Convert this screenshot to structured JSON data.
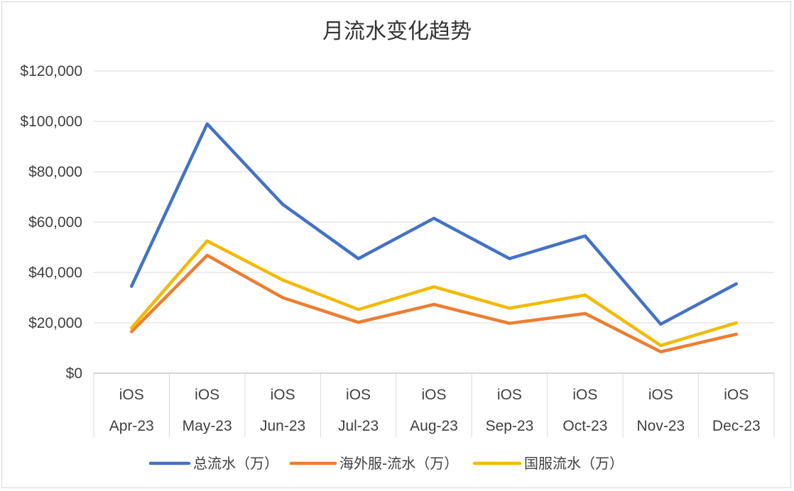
{
  "chart_data": {
    "type": "line",
    "title": "月流水变化趋势",
    "categories": [
      {
        "group": "iOS",
        "month": "Apr-23"
      },
      {
        "group": "iOS",
        "month": "May-23"
      },
      {
        "group": "iOS",
        "month": "Jun-23"
      },
      {
        "group": "iOS",
        "month": "Jul-23"
      },
      {
        "group": "iOS",
        "month": "Aug-23"
      },
      {
        "group": "iOS",
        "month": "Sep-23"
      },
      {
        "group": "iOS",
        "month": "Oct-23"
      },
      {
        "group": "iOS",
        "month": "Nov-23"
      },
      {
        "group": "iOS",
        "month": "Dec-23"
      }
    ],
    "y_ticks": [
      "$0",
      "$20,000",
      "$40,000",
      "$60,000",
      "$80,000",
      "$100,000",
      "$120,000"
    ],
    "ylim": [
      0,
      120000
    ],
    "grid": true,
    "legend_position": "bottom",
    "series": [
      {
        "name": "总流水（万）",
        "color": "#4472C4",
        "values": [
          34500,
          99000,
          67000,
          45500,
          61500,
          45500,
          54500,
          19500,
          35500
        ]
      },
      {
        "name": "海外服-流水（万）",
        "color": "#ED7D31",
        "values": [
          16500,
          46800,
          30000,
          20200,
          27300,
          19800,
          23700,
          8500,
          15500
        ]
      },
      {
        "name": "国服流水（万）",
        "color": "#F2BA02",
        "values": [
          18000,
          52500,
          37000,
          25300,
          34300,
          25800,
          31000,
          11000,
          20000
        ]
      }
    ]
  }
}
